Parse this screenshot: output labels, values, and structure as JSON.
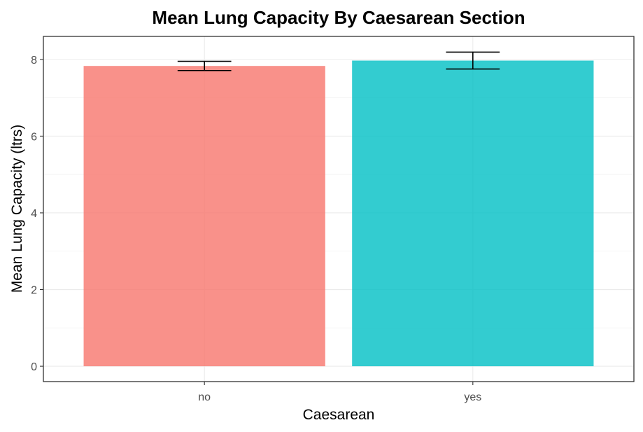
{
  "chart_data": {
    "type": "bar",
    "title": "Mean Lung Capacity By Caesarean Section",
    "xlabel": "Caesarean",
    "ylabel": "Mean Lung Capacity (ltrs)",
    "categories": [
      "no",
      "yes"
    ],
    "values": [
      7.83,
      7.97
    ],
    "error_low": [
      7.71,
      7.75
    ],
    "error_high": [
      7.95,
      8.19
    ],
    "colors": [
      "#F8766D",
      "#00BFC4"
    ],
    "ylim": [
      -0.4,
      8.6
    ],
    "yticks": [
      0,
      2,
      4,
      6,
      8
    ],
    "grid": true,
    "legend": "none"
  }
}
